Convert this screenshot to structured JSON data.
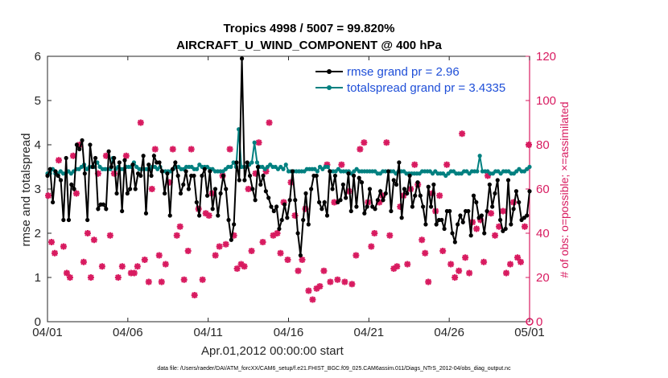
{
  "chart_data": {
    "type": "line",
    "title_line1": "Tropics 4998 / 5007 = 99.820%",
    "title_line2": "AIRCRAFT_U_WIND_COMPONENT @ 400 hPa",
    "xlabel": "Apr.01,2012 00:00:00 start",
    "ylabel_left": "rmse and totalspread",
    "ylabel_right": "# of obs: o=possible; ×=assimilated",
    "x_tick_labels": [
      "04/01",
      "04/06",
      "04/11",
      "04/16",
      "04/21",
      "04/26",
      "05/01"
    ],
    "x_ticks_days": [
      0,
      5,
      10,
      15,
      20,
      25,
      30
    ],
    "xlim_days": [
      0,
      30
    ],
    "ylim_left": [
      0,
      6
    ],
    "ylim_right": [
      0,
      120
    ],
    "yticks_left": [
      "0",
      "1",
      "2",
      "3",
      "4",
      "5",
      "6"
    ],
    "yticks_right": [
      "0",
      "20",
      "40",
      "60",
      "80",
      "100",
      "120"
    ],
    "footnote": "data file: /Users/raeder/DAI/ATM_forcXX/CAM6_setup/f.e21.FHIST_BGC.f09_025.CAM6assim.011/Diags_NTrS_2012-04/obs_diag_output.nc",
    "series": [
      {
        "name": "rmse grand pr = 2.96",
        "color": "#000000",
        "axis": "left",
        "values": [
          3.3,
          3.45,
          2.7,
          3.4,
          3.3,
          3.2,
          2.3,
          3.7,
          2.3,
          3.1,
          3.0,
          4.0,
          3.9,
          4.1,
          3.35,
          2.3,
          4.0,
          3.5,
          3.7,
          2.55,
          2.65,
          2.65,
          2.55,
          3.85,
          3.5,
          3.7,
          2.9,
          3.6,
          2.5,
          3.65,
          2.9,
          3.0,
          3.55,
          3.0,
          3.35,
          3.3,
          3.75,
          2.45,
          3.55,
          3.3,
          3.75,
          3.6,
          3.6,
          3.4,
          2.9,
          3.35,
          2.4,
          3.45,
          3.6,
          3.3,
          2.9,
          3.1,
          3.4,
          3.0,
          3.3,
          3.3,
          2.7,
          2.4,
          3.3,
          3.45,
          2.85,
          3.4,
          2.55,
          3.0,
          2.4,
          2.9,
          3.3,
          3.0,
          2.3,
          1.85,
          2.2,
          3.6,
          3.2,
          5.95,
          3.2,
          3.6,
          3.3,
          3.0,
          2.75,
          3.5,
          3.1,
          3.3,
          2.95,
          2.8,
          2.6,
          2.5,
          2.6,
          2.1,
          2.3,
          2.65,
          2.35,
          2.75,
          3.4,
          2.75,
          2.0,
          1.5,
          2.3,
          2.9,
          2.2,
          3.0,
          3.3,
          3.3,
          2.7,
          2.55,
          2.7,
          2.4,
          3.4,
          3.0,
          3.3,
          2.7,
          2.75,
          3.1,
          2.8,
          3.35,
          2.5,
          3.3,
          2.6,
          3.25,
          3.15,
          2.45,
          2.6,
          3.0,
          2.6,
          2.55,
          2.75,
          2.95,
          2.75,
          2.9,
          3.4,
          2.5,
          3.2,
          3.1,
          3.6,
          2.35,
          3.0,
          2.9,
          3.3,
          2.6,
          2.85,
          3.15,
          2.85,
          2.6,
          2.2,
          3.05,
          2.6,
          3.1,
          2.2,
          2.3,
          2.3,
          2.1,
          2.5,
          2.5,
          2.0,
          1.8,
          2.2,
          2.4,
          2.25,
          2.5,
          2.5,
          1.95,
          2.85,
          2.7,
          2.35,
          2.4,
          2.0,
          2.5,
          3.1,
          2.6,
          2.9,
          3.2,
          2.3,
          2.05,
          2.1,
          3.2,
          2.2,
          2.55,
          2.95,
          2.7,
          2.3,
          2.35,
          2.4,
          2.95
        ]
      },
      {
        "name": "totalspread grand pr = 3.4335",
        "color": "#008080",
        "axis": "left",
        "values": [
          3.35,
          3.35,
          3.45,
          3.35,
          3.35,
          3.4,
          3.35,
          3.35,
          3.4,
          3.35,
          3.4,
          3.45,
          3.45,
          3.5,
          3.55,
          3.45,
          3.5,
          3.5,
          3.5,
          3.6,
          3.5,
          3.45,
          3.45,
          3.45,
          3.45,
          3.7,
          3.45,
          3.5,
          3.45,
          3.45,
          3.5,
          3.5,
          3.5,
          3.6,
          3.5,
          3.45,
          3.45,
          3.45,
          3.45,
          3.45,
          3.5,
          3.5,
          3.45,
          3.5,
          3.4,
          3.4,
          3.4,
          3.4,
          3.45,
          3.5,
          3.5,
          3.45,
          3.45,
          3.5,
          3.5,
          3.5,
          3.45,
          3.45,
          3.55,
          3.5,
          3.5,
          3.5,
          3.45,
          3.45,
          3.4,
          3.4,
          3.4,
          3.4,
          3.45,
          3.5,
          3.5,
          3.6,
          3.5,
          4.35,
          3.5,
          3.5,
          3.5,
          3.55,
          3.6,
          4.05,
          3.6,
          3.5,
          3.5,
          3.45,
          3.5,
          3.55,
          3.5,
          3.5,
          3.45,
          3.5,
          3.45,
          3.55,
          3.4,
          3.4,
          3.4,
          3.4,
          3.4,
          3.4,
          3.4,
          3.45,
          3.45,
          3.45,
          3.45,
          3.4,
          3.5,
          3.45,
          3.5,
          3.5,
          3.4,
          3.4,
          3.4,
          3.45,
          3.4,
          3.4,
          3.4,
          3.4,
          3.35,
          3.4,
          3.45,
          3.4,
          3.4,
          3.4,
          3.4,
          3.4,
          3.4,
          3.4,
          3.35,
          3.35,
          3.4,
          3.4,
          3.4,
          3.4,
          3.4,
          3.35,
          3.4,
          3.4,
          3.4,
          3.35,
          3.35,
          3.35,
          3.35,
          3.35,
          3.35,
          3.4,
          3.4,
          3.4,
          3.4,
          3.35,
          3.4,
          3.35,
          3.35,
          3.35,
          3.3,
          3.35,
          3.4,
          3.4,
          3.35,
          3.35,
          3.35,
          3.4,
          3.4,
          3.35,
          3.4,
          3.4,
          3.4,
          3.75,
          3.4,
          3.4,
          3.4,
          3.35,
          3.35,
          3.4,
          3.4,
          3.35,
          3.4,
          3.4,
          3.4,
          3.35,
          3.35,
          3.4,
          3.45,
          3.4,
          3.4,
          3.45,
          3.5
        ]
      }
    ],
    "scatter": {
      "name": "# of obs",
      "color": "#d81b60",
      "axis": "right",
      "points": [
        [
          0.05,
          57
        ],
        [
          0.25,
          36
        ],
        [
          0.45,
          31
        ],
        [
          0.7,
          73
        ],
        [
          1.0,
          34
        ],
        [
          1.2,
          22
        ],
        [
          1.4,
          20
        ],
        [
          1.6,
          75
        ],
        [
          1.8,
          58
        ],
        [
          2.0,
          80
        ],
        [
          2.25,
          27
        ],
        [
          2.5,
          40
        ],
        [
          2.7,
          20
        ],
        [
          2.9,
          37
        ],
        [
          3.15,
          67
        ],
        [
          3.4,
          25
        ],
        [
          3.65,
          75
        ],
        [
          3.9,
          39
        ],
        [
          4.15,
          67
        ],
        [
          4.4,
          20
        ],
        [
          4.65,
          25
        ],
        [
          4.9,
          75
        ],
        [
          5.2,
          22
        ],
        [
          5.4,
          22
        ],
        [
          5.6,
          25
        ],
        [
          5.8,
          90
        ],
        [
          6.05,
          28
        ],
        [
          6.3,
          18
        ],
        [
          6.5,
          60
        ],
        [
          6.7,
          78
        ],
        [
          6.95,
          30
        ],
        [
          7.1,
          18
        ],
        [
          7.35,
          26
        ],
        [
          7.6,
          63
        ],
        [
          7.8,
          78
        ],
        [
          8.05,
          39
        ],
        [
          8.25,
          43
        ],
        [
          8.5,
          19
        ],
        [
          8.75,
          32
        ],
        [
          8.95,
          78
        ],
        [
          9.15,
          12
        ],
        [
          9.4,
          51
        ],
        [
          9.65,
          19
        ],
        [
          9.85,
          49
        ],
        [
          10.05,
          48
        ],
        [
          10.25,
          58
        ],
        [
          10.45,
          30
        ],
        [
          10.7,
          34
        ],
        [
          10.9,
          66
        ],
        [
          11.1,
          35
        ],
        [
          11.35,
          78
        ],
        [
          11.6,
          39
        ],
        [
          11.8,
          24
        ],
        [
          12.05,
          26
        ],
        [
          12.25,
          25
        ],
        [
          12.5,
          60
        ],
        [
          12.7,
          32
        ],
        [
          12.95,
          67
        ],
        [
          13.15,
          81
        ],
        [
          13.4,
          36
        ],
        [
          13.6,
          68
        ],
        [
          13.8,
          90
        ],
        [
          14.05,
          39
        ],
        [
          14.3,
          40
        ],
        [
          14.5,
          31
        ],
        [
          14.7,
          54
        ],
        [
          14.95,
          28
        ],
        [
          15.15,
          63
        ],
        [
          15.4,
          48
        ],
        [
          15.6,
          23
        ],
        [
          15.85,
          28
        ],
        [
          16.05,
          51
        ],
        [
          16.25,
          14
        ],
        [
          16.5,
          10
        ],
        [
          16.75,
          15
        ],
        [
          16.95,
          16
        ],
        [
          17.2,
          23
        ],
        [
          17.4,
          71
        ],
        [
          17.6,
          18
        ],
        [
          17.85,
          54
        ],
        [
          18.05,
          19
        ],
        [
          18.3,
          71
        ],
        [
          18.5,
          18
        ],
        [
          18.75,
          59
        ],
        [
          18.95,
          17
        ],
        [
          19.2,
          30
        ],
        [
          19.45,
          78
        ],
        [
          19.7,
          81
        ],
        [
          19.95,
          54
        ],
        [
          20.15,
          34
        ],
        [
          20.35,
          40
        ],
        [
          20.65,
          54
        ],
        [
          20.85,
          57
        ],
        [
          21.1,
          81
        ],
        [
          21.3,
          39
        ],
        [
          21.55,
          24
        ],
        [
          21.75,
          25
        ],
        [
          21.95,
          52
        ],
        [
          22.15,
          57
        ],
        [
          22.4,
          26
        ],
        [
          22.6,
          60
        ],
        [
          22.85,
          71
        ],
        [
          23.05,
          62
        ],
        [
          23.3,
          37
        ],
        [
          23.5,
          31
        ],
        [
          23.7,
          18
        ],
        [
          23.95,
          58
        ],
        [
          24.15,
          50
        ],
        [
          24.4,
          57
        ],
        [
          24.6,
          32
        ],
        [
          24.85,
          71
        ],
        [
          25.1,
          26
        ],
        [
          25.35,
          20
        ],
        [
          25.6,
          23
        ],
        [
          25.8,
          85
        ],
        [
          26.0,
          29
        ],
        [
          26.25,
          22
        ],
        [
          26.45,
          45
        ],
        [
          26.7,
          42
        ],
        [
          26.95,
          46
        ],
        [
          27.15,
          27
        ],
        [
          27.4,
          66
        ],
        [
          27.6,
          49
        ],
        [
          27.85,
          39
        ],
        [
          28.1,
          43
        ],
        [
          28.35,
          50
        ],
        [
          28.55,
          22
        ],
        [
          28.8,
          26
        ],
        [
          29.0,
          54
        ],
        [
          29.25,
          29
        ],
        [
          29.45,
          27
        ],
        [
          29.7,
          43
        ],
        [
          29.95,
          80
        ]
      ]
    }
  },
  "legend": {
    "rmse_label": "rmse grand pr = 2.96",
    "spread_label": "totalspread grand pr = 3.4335"
  }
}
